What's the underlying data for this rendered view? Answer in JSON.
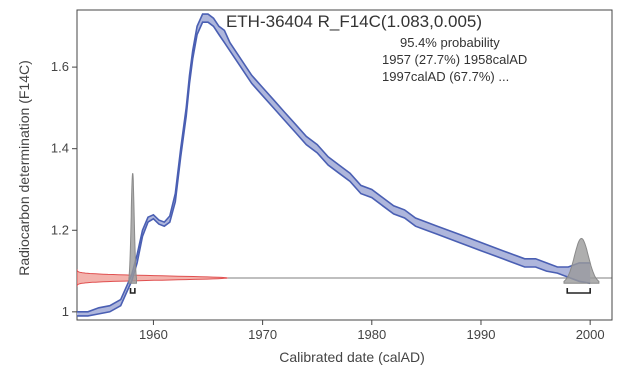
{
  "chart_data": {
    "type": "line",
    "title": "ETH-36404 R_F14C(1.083,0.005)",
    "xlabel": "Calibrated date (calAD)",
    "ylabel": "Radiocarbon determination (F14C)",
    "xlim": [
      1953,
      2002
    ],
    "ylim": [
      0.98,
      1.74
    ],
    "x_ticks": [
      1960,
      1970,
      1980,
      1990,
      2000
    ],
    "y_ticks": [
      1,
      1.2,
      1.4,
      1.6
    ],
    "annotations": [
      "95.4% probability",
      "1957 (27.7%) 1958calAD",
      "1997calAD (67.7%) ..."
    ],
    "measurement": {
      "f14c": 1.083,
      "sigma": 0.005
    },
    "calibration_curve": {
      "x": [
        1953,
        1954,
        1955,
        1956,
        1957,
        1957.5,
        1958,
        1958.5,
        1959,
        1959.5,
        1960,
        1960.5,
        1961,
        1961.5,
        1962,
        1962.5,
        1963,
        1963.3,
        1963.6,
        1964,
        1964.5,
        1965,
        1965.5,
        1966,
        1966.5,
        1967,
        1968,
        1969,
        1970,
        1971,
        1972,
        1973,
        1974,
        1975,
        1976,
        1977,
        1978,
        1979,
        1980,
        1981,
        1982,
        1983,
        1984,
        1985,
        1986,
        1987,
        1988,
        1989,
        1990,
        1991,
        1992,
        1993,
        1994,
        1995,
        1996,
        1997,
        1998,
        1999,
        2000
      ],
      "upper": [
        1.0,
        1.0,
        1.01,
        1.015,
        1.03,
        1.06,
        1.09,
        1.14,
        1.2,
        1.232,
        1.238,
        1.225,
        1.22,
        1.235,
        1.29,
        1.4,
        1.5,
        1.58,
        1.64,
        1.7,
        1.73,
        1.73,
        1.72,
        1.7,
        1.69,
        1.66,
        1.62,
        1.58,
        1.55,
        1.52,
        1.49,
        1.46,
        1.43,
        1.41,
        1.38,
        1.36,
        1.34,
        1.31,
        1.3,
        1.28,
        1.26,
        1.25,
        1.23,
        1.22,
        1.21,
        1.2,
        1.19,
        1.18,
        1.17,
        1.16,
        1.15,
        1.14,
        1.13,
        1.13,
        1.12,
        1.11,
        1.11,
        1.12,
        1.12
      ],
      "lower": [
        0.99,
        0.99,
        0.995,
        1.0,
        1.015,
        1.045,
        1.075,
        1.12,
        1.185,
        1.22,
        1.228,
        1.215,
        1.21,
        1.22,
        1.27,
        1.38,
        1.48,
        1.56,
        1.62,
        1.68,
        1.71,
        1.71,
        1.7,
        1.68,
        1.66,
        1.64,
        1.6,
        1.56,
        1.53,
        1.5,
        1.47,
        1.44,
        1.41,
        1.39,
        1.36,
        1.34,
        1.32,
        1.29,
        1.28,
        1.26,
        1.24,
        1.23,
        1.21,
        1.2,
        1.19,
        1.18,
        1.17,
        1.16,
        1.15,
        1.14,
        1.13,
        1.12,
        1.11,
        1.11,
        1.1,
        1.095,
        1.085,
        1.075,
        1.07
      ]
    },
    "posterior_peaks": [
      {
        "x": 1958.1,
        "halfwidth": 0.35,
        "height": 0.27,
        "base": 1.07
      },
      {
        "x": 1999.2,
        "halfwidth": 1.6,
        "height": 0.11,
        "base": 1.07
      }
    ],
    "probability_ranges": [
      {
        "from": 1957.9,
        "to": 1958.3
      },
      {
        "from": 1997.9,
        "to": 2000
      }
    ],
    "colors": {
      "curve": "#4a5fb3",
      "curve_fill": "#aeb6dc",
      "measurement": "#e05050",
      "posterior": "#8a8a8a",
      "axis": "#444444"
    }
  }
}
